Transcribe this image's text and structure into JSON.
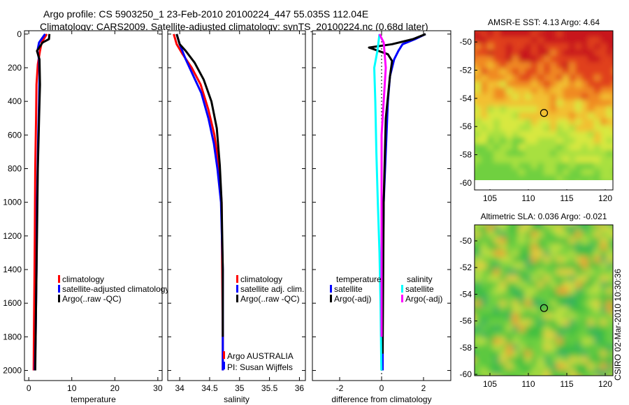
{
  "title_line1": "Argo profile: CS 5903250_1 23-Feb-2010 20100224_447 55.035S 112.04E",
  "title_line2": "Climatology: CARS2009. Satellite-adjusted climatology: synTS_20100224.nc (0.68d later)",
  "footer_text": "CSIRO 02-Mar-2010 10:30:36",
  "colors": {
    "red": "#ff0000",
    "blue": "#0000ff",
    "black": "#000000",
    "cyan": "#00ffff",
    "magenta": "#ff00ff"
  },
  "chart_data": [
    {
      "type": "line",
      "name": "temperature-profile",
      "xlabel": "temperature",
      "xlim": [
        -1,
        31
      ],
      "ylim": [
        2060,
        -20
      ],
      "xticks": [
        0,
        10,
        20,
        30
      ],
      "yticks": [
        0,
        200,
        400,
        600,
        800,
        1000,
        1200,
        1400,
        1600,
        1800,
        2000
      ],
      "series": [
        {
          "name": "climatology",
          "color": "red",
          "x": [
            4.2,
            3.0,
            2.6,
            2.1,
            1.8,
            1.7,
            1.5,
            1.4,
            1.3,
            1.2,
            1.15
          ],
          "y": [
            0,
            50,
            100,
            180,
            300,
            500,
            800,
            1200,
            1500,
            1800,
            2000
          ]
        },
        {
          "name": "satellite-adjusted climatology",
          "color": "blue",
          "x": [
            3.8,
            2.4,
            2.0,
            2.4,
            2.5,
            2.4,
            2.2,
            1.9,
            1.8,
            1.6,
            1.4
          ],
          "y": [
            0,
            50,
            100,
            150,
            250,
            400,
            600,
            1000,
            1400,
            1800,
            2000
          ]
        },
        {
          "name": "Argo(..raw -QC)",
          "color": "black",
          "x": [
            4.8,
            4.7,
            3.2,
            1.9,
            2.5,
            2.6,
            2.4,
            2.1,
            1.9,
            1.7,
            1.5
          ],
          "y": [
            0,
            30,
            50,
            100,
            150,
            300,
            500,
            800,
            1200,
            1600,
            2000
          ]
        }
      ],
      "legend": [
        "climatology",
        "satellite-adjusted climatology",
        "Argo(..raw -QC)"
      ]
    },
    {
      "type": "line",
      "name": "salinity-profile",
      "xlabel": "salinity",
      "xlim": [
        33.8,
        36.1
      ],
      "ylim": [
        2060,
        -20
      ],
      "xticks": [
        34,
        34.5,
        35,
        35.5,
        36
      ],
      "series": [
        {
          "name": "climatology",
          "color": "red",
          "x": [
            33.9,
            33.95,
            34.05,
            34.2,
            34.35,
            34.48,
            34.58,
            34.66,
            34.7,
            34.71,
            34.72,
            34.72
          ],
          "y": [
            0,
            60,
            120,
            200,
            300,
            450,
            600,
            800,
            1000,
            1400,
            1800,
            2000
          ]
        },
        {
          "name": "satellite adj. clim.",
          "color": "blue",
          "x": [
            33.95,
            34.0,
            34.1,
            34.23,
            34.36,
            34.48,
            34.57,
            34.63,
            34.69,
            34.72,
            34.72,
            34.72
          ],
          "y": [
            0,
            60,
            150,
            250,
            350,
            500,
            650,
            800,
            1000,
            1400,
            1800,
            2000
          ]
        },
        {
          "name": "Argo(..raw -QC)",
          "color": "black",
          "x": [
            33.95,
            34.0,
            34.1,
            34.25,
            34.4,
            34.53,
            34.62,
            34.67,
            34.7,
            34.72,
            34.72
          ],
          "y": [
            0,
            60,
            100,
            170,
            270,
            400,
            560,
            780,
            1000,
            1400,
            1800
          ]
        }
      ],
      "legend": [
        "climatology",
        "satellite adj. clim.",
        "Argo(..raw -QC)"
      ],
      "annotation": [
        "Argo AUSTRALIA",
        "PI: Susan Wijffels"
      ]
    },
    {
      "type": "line",
      "name": "difference-profile",
      "xlabel": "difference from climatology",
      "xlim": [
        -3.3,
        3.3
      ],
      "ylim": [
        2060,
        -20
      ],
      "xticks": [
        -2,
        0,
        2
      ],
      "series": [
        {
          "name": "temperature satellite",
          "color": "blue",
          "x": [
            2.1,
            1.6,
            1.0,
            0.8,
            0.6,
            0.4,
            0.3,
            0.2,
            0.1,
            0.05,
            0.05
          ],
          "y": [
            0,
            30,
            60,
            100,
            150,
            250,
            400,
            700,
            1000,
            1500,
            2000
          ]
        },
        {
          "name": "temperature Argo(-adj)",
          "color": "black",
          "x": [
            2.1,
            1.5,
            0.5,
            -0.6,
            0.3,
            0.5,
            0.4,
            0.2,
            0.1,
            0.05
          ],
          "y": [
            0,
            30,
            60,
            80,
            120,
            160,
            250,
            500,
            1000,
            1900
          ]
        },
        {
          "name": "salinity satellite",
          "color": "cyan",
          "x": [
            -0.1,
            -0.2,
            -0.35,
            -0.3,
            -0.25,
            -0.18,
            -0.1,
            -0.05,
            -0.02,
            -0.01
          ],
          "y": [
            0,
            100,
            200,
            400,
            700,
            1000,
            1300,
            1600,
            1900,
            2000
          ]
        },
        {
          "name": "salinity Argo(-adj)",
          "color": "magenta",
          "x": [
            -0.1,
            0.1,
            0.2,
            0.1,
            0.0,
            0.0,
            0.0
          ],
          "y": [
            0,
            50,
            200,
            400,
            600,
            1000,
            1800
          ]
        }
      ],
      "legend_titles": [
        "temperature",
        "salinity"
      ],
      "legend": [
        "satellite",
        "Argo(-adj)",
        "satellite",
        "Argo(-adj)"
      ]
    },
    {
      "type": "heatmap",
      "name": "amsre-sst-map",
      "title": "AMSR-E SST: 4.13 Argo: 4.64",
      "xlim": [
        103,
        121
      ],
      "ylim": [
        -60.5,
        -49.2
      ],
      "xticks": [
        105,
        110,
        115,
        120
      ],
      "yticks": [
        -50,
        -52,
        -54,
        -56,
        -58,
        -60
      ],
      "marker": {
        "lon": 112.04,
        "lat": -55.035
      }
    },
    {
      "type": "heatmap",
      "name": "altimetric-sla-map",
      "title": "Altimetric SLA: 0.036 Argo: -0.021",
      "xlim": [
        103,
        121
      ],
      "ylim": [
        -60.1,
        -48.8
      ],
      "xticks": [
        105,
        110,
        115,
        120
      ],
      "yticks": [
        -50,
        -52,
        -54,
        -56,
        -58,
        -60
      ],
      "marker": {
        "lon": 112.04,
        "lat": -55.035
      }
    }
  ]
}
